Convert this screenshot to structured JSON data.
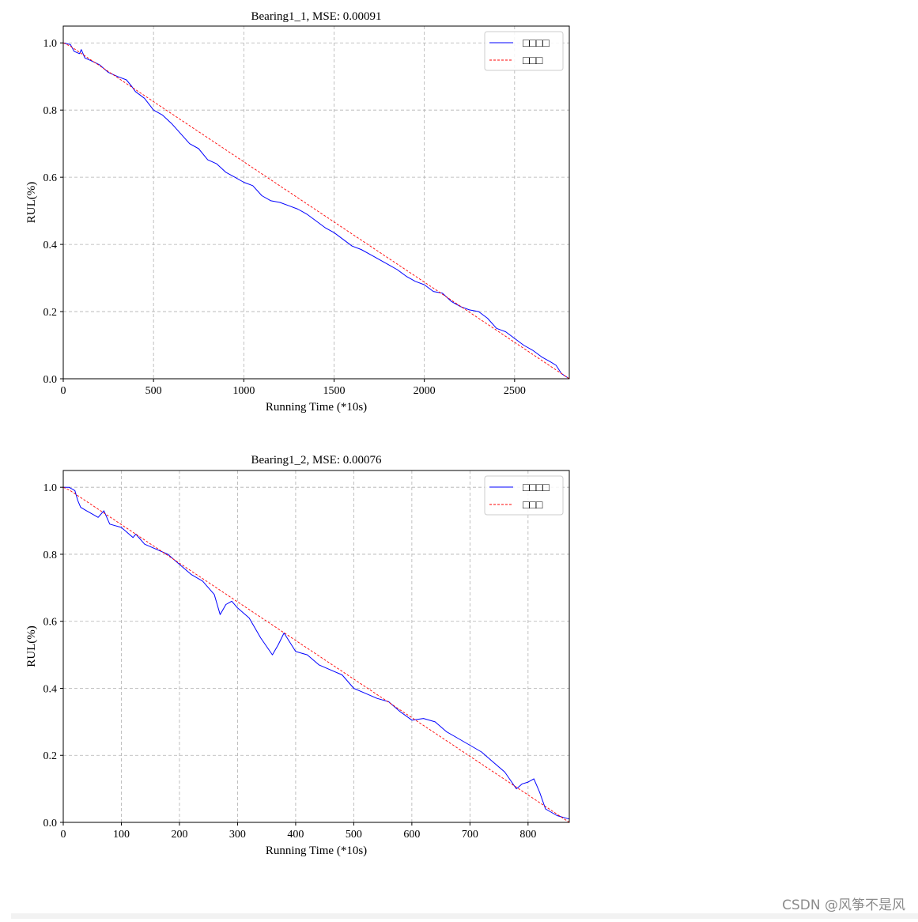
{
  "watermark": "CSDN @风筝不是风",
  "chart_data": [
    {
      "type": "line",
      "title": "Bearing1_1, MSE: 0.00091",
      "xlabel": "Running Time (*10s)",
      "ylabel": "RUL(%)",
      "xlim": [
        0,
        2803
      ],
      "ylim": [
        0,
        1.05
      ],
      "xticks": [
        0,
        500,
        1000,
        1500,
        2000,
        2500
      ],
      "yticks": [
        0.0,
        0.2,
        0.4,
        0.6,
        0.8,
        1.0
      ],
      "xtick_labels": [
        "0",
        "500",
        "1000",
        "1500",
        "2000",
        "2500"
      ],
      "ytick_labels": [
        "0.0",
        "0.2",
        "0.4",
        "0.6",
        "0.8",
        "1.0"
      ],
      "grid": true,
      "legend_position": "top-right",
      "series": [
        {
          "name": "□□□□",
          "color": "#0000ff",
          "style": "solid",
          "x": [
            0,
            40,
            60,
            90,
            100,
            120,
            150,
            200,
            250,
            300,
            350,
            380,
            400,
            450,
            500,
            550,
            600,
            650,
            700,
            750,
            800,
            850,
            900,
            950,
            1000,
            1050,
            1100,
            1150,
            1200,
            1250,
            1300,
            1350,
            1400,
            1450,
            1500,
            1550,
            1600,
            1650,
            1700,
            1750,
            1800,
            1850,
            1900,
            1950,
            2000,
            2050,
            2100,
            2150,
            2200,
            2250,
            2300,
            2350,
            2400,
            2450,
            2500,
            2550,
            2600,
            2650,
            2700,
            2730,
            2760,
            2803
          ],
          "y": [
            1.0,
            0.995,
            0.975,
            0.968,
            0.98,
            0.955,
            0.948,
            0.935,
            0.912,
            0.9,
            0.89,
            0.87,
            0.855,
            0.835,
            0.8,
            0.785,
            0.76,
            0.73,
            0.7,
            0.685,
            0.652,
            0.64,
            0.615,
            0.6,
            0.585,
            0.575,
            0.545,
            0.53,
            0.525,
            0.515,
            0.505,
            0.49,
            0.47,
            0.45,
            0.435,
            0.415,
            0.395,
            0.385,
            0.37,
            0.355,
            0.34,
            0.325,
            0.305,
            0.29,
            0.28,
            0.26,
            0.255,
            0.23,
            0.215,
            0.205,
            0.2,
            0.18,
            0.15,
            0.14,
            0.12,
            0.1,
            0.085,
            0.065,
            0.05,
            0.04,
            0.015,
            0.0
          ]
        },
        {
          "name": "□□□",
          "color": "#ff0000",
          "style": "dashed",
          "x": [
            0,
            40,
            2803
          ],
          "y": [
            1.0,
            0.99,
            0.0
          ]
        }
      ]
    },
    {
      "type": "line",
      "title": "Bearing1_2, MSE: 0.00076",
      "xlabel": "Running Time (*10s)",
      "ylabel": "RUL(%)",
      "xlim": [
        0,
        871
      ],
      "ylim": [
        0,
        1.05
      ],
      "xticks": [
        0,
        100,
        200,
        300,
        400,
        500,
        600,
        700,
        800
      ],
      "yticks": [
        0.0,
        0.2,
        0.4,
        0.6,
        0.8,
        1.0
      ],
      "xtick_labels": [
        "0",
        "100",
        "200",
        "300",
        "400",
        "500",
        "600",
        "700",
        "800"
      ],
      "ytick_labels": [
        "0.0",
        "0.2",
        "0.4",
        "0.6",
        "0.8",
        "1.0"
      ],
      "grid": true,
      "legend_position": "top-right",
      "series": [
        {
          "name": "□□□□",
          "color": "#0000ff",
          "style": "solid",
          "x": [
            0,
            10,
            20,
            25,
            30,
            40,
            50,
            60,
            70,
            80,
            100,
            120,
            125,
            140,
            160,
            180,
            200,
            220,
            240,
            260,
            270,
            280,
            290,
            300,
            320,
            340,
            360,
            370,
            380,
            400,
            420,
            440,
            460,
            480,
            500,
            520,
            540,
            560,
            580,
            600,
            620,
            640,
            660,
            680,
            700,
            720,
            740,
            760,
            780,
            790,
            800,
            810,
            820,
            830,
            850,
            871
          ],
          "y": [
            1.0,
            1.0,
            0.99,
            0.96,
            0.94,
            0.93,
            0.92,
            0.91,
            0.93,
            0.89,
            0.88,
            0.85,
            0.86,
            0.83,
            0.815,
            0.8,
            0.77,
            0.74,
            0.72,
            0.68,
            0.62,
            0.65,
            0.66,
            0.64,
            0.61,
            0.55,
            0.5,
            0.53,
            0.565,
            0.51,
            0.5,
            0.47,
            0.455,
            0.44,
            0.4,
            0.385,
            0.37,
            0.36,
            0.33,
            0.305,
            0.31,
            0.3,
            0.27,
            0.25,
            0.23,
            0.21,
            0.18,
            0.15,
            0.1,
            0.115,
            0.12,
            0.13,
            0.09,
            0.04,
            0.02,
            0.01
          ]
        },
        {
          "name": "□□□",
          "color": "#ff0000",
          "style": "dashed",
          "x": [
            0,
            12,
            871
          ],
          "y": [
            1.0,
            0.99,
            0.0
          ]
        }
      ]
    }
  ]
}
